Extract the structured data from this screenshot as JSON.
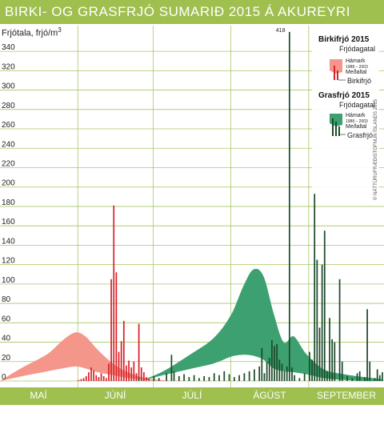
{
  "title": "BIRKI- OG GRASFRJÓ SUMARIÐ 2015 Á AKUREYRI",
  "copyright": "© NÁTTÚRUFRÆÐISTOFNUN ÍSLANDS 2015",
  "colors": {
    "header": "#9fbf4f",
    "birch_band": "#f4968a",
    "birch_bar": "#d9222a",
    "grass_band": "#3da070",
    "grass_bar": "#1c4a2a",
    "grid": "#a7c764"
  },
  "chart_data": {
    "type": "bar",
    "ylabel": "Frjótala, frjó/m",
    "ylabel_sup": "3",
    "ylim": [
      0,
      350
    ],
    "yticks": [
      0,
      20,
      40,
      60,
      80,
      100,
      120,
      140,
      160,
      180,
      200,
      220,
      240,
      260,
      280,
      300,
      320,
      340
    ],
    "months": [
      "MAÍ",
      "JÚNÍ",
      "JÚLÍ",
      "ÁGÚST",
      "SEPTEMBER"
    ],
    "x_range": [
      "2015-05-01",
      "2015-09-30"
    ],
    "legend": {
      "birch": {
        "heading": "Birkifrjó 2015",
        "band_label": "Frjódagatal",
        "max_label": "Hámark",
        "period_label": "1988 – 2003",
        "mean_label": "Meðaltal",
        "bar_label": "Birkifrjó"
      },
      "grass": {
        "heading": "Grasfrjó 2015",
        "band_label": "Frjódagatal",
        "max_label": "Hámark",
        "period_label": "1988 – 2003",
        "mean_label": "Meðaltal",
        "bar_label": "Grasfrjó"
      }
    },
    "annotations": [
      {
        "x": "2015-08-24",
        "text": "418"
      }
    ],
    "birch_calendar": [
      {
        "date": "2015-05-01",
        "min": 0,
        "max": 0
      },
      {
        "date": "2015-05-10",
        "min": 5,
        "max": 14
      },
      {
        "date": "2015-05-20",
        "min": 10,
        "max": 28
      },
      {
        "date": "2015-05-26",
        "min": 13,
        "max": 42
      },
      {
        "date": "2015-05-31",
        "min": 15,
        "max": 50
      },
      {
        "date": "2015-06-04",
        "min": 13,
        "max": 46
      },
      {
        "date": "2015-06-09",
        "min": 9,
        "max": 32
      },
      {
        "date": "2015-06-15",
        "min": 6,
        "max": 18
      },
      {
        "date": "2015-06-21",
        "min": 3,
        "max": 9
      },
      {
        "date": "2015-06-28",
        "min": 1,
        "max": 3
      },
      {
        "date": "2015-07-04",
        "min": 0,
        "max": 1
      },
      {
        "date": "2015-07-08",
        "min": 0,
        "max": 0
      }
    ],
    "grass_calendar": [
      {
        "date": "2015-06-26",
        "min": 0,
        "max": 0
      },
      {
        "date": "2015-07-05",
        "min": 6,
        "max": 10
      },
      {
        "date": "2015-07-15",
        "min": 12,
        "max": 26
      },
      {
        "date": "2015-07-25",
        "min": 18,
        "max": 44
      },
      {
        "date": "2015-08-01",
        "min": 25,
        "max": 68
      },
      {
        "date": "2015-08-06",
        "min": 27,
        "max": 98
      },
      {
        "date": "2015-08-10",
        "min": 26,
        "max": 115
      },
      {
        "date": "2015-08-14",
        "min": 22,
        "max": 108
      },
      {
        "date": "2015-08-18",
        "min": 13,
        "max": 70
      },
      {
        "date": "2015-08-22",
        "min": 10,
        "max": 40
      },
      {
        "date": "2015-08-26",
        "min": 9,
        "max": 46
      },
      {
        "date": "2015-08-31",
        "min": 7,
        "max": 28
      },
      {
        "date": "2015-09-07",
        "min": 3,
        "max": 12
      },
      {
        "date": "2015-09-15",
        "min": 1,
        "max": 7
      },
      {
        "date": "2015-09-23",
        "min": 0,
        "max": 4
      },
      {
        "date": "2015-09-30",
        "min": 0,
        "max": 2
      }
    ],
    "birch_daily": [
      {
        "date": "2015-06-01",
        "value": 1
      },
      {
        "date": "2015-06-02",
        "value": 2
      },
      {
        "date": "2015-06-03",
        "value": 3
      },
      {
        "date": "2015-06-04",
        "value": 5
      },
      {
        "date": "2015-06-05",
        "value": 9
      },
      {
        "date": "2015-06-06",
        "value": 14
      },
      {
        "date": "2015-06-07",
        "value": 11
      },
      {
        "date": "2015-06-08",
        "value": 6
      },
      {
        "date": "2015-06-09",
        "value": 4
      },
      {
        "date": "2015-06-10",
        "value": 8
      },
      {
        "date": "2015-06-11",
        "value": 5
      },
      {
        "date": "2015-06-12",
        "value": 3
      },
      {
        "date": "2015-06-13",
        "value": 18
      },
      {
        "date": "2015-06-14",
        "value": 105
      },
      {
        "date": "2015-06-15",
        "value": 181
      },
      {
        "date": "2015-06-16",
        "value": 112
      },
      {
        "date": "2015-06-17",
        "value": 30
      },
      {
        "date": "2015-06-18",
        "value": 41
      },
      {
        "date": "2015-06-19",
        "value": 62
      },
      {
        "date": "2015-06-20",
        "value": 16
      },
      {
        "date": "2015-06-21",
        "value": 21
      },
      {
        "date": "2015-06-22",
        "value": 14
      },
      {
        "date": "2015-06-23",
        "value": 20
      },
      {
        "date": "2015-06-24",
        "value": 8
      },
      {
        "date": "2015-06-25",
        "value": 59
      },
      {
        "date": "2015-06-26",
        "value": 14
      },
      {
        "date": "2015-06-27",
        "value": 9
      },
      {
        "date": "2015-06-28",
        "value": 4
      },
      {
        "date": "2015-06-29",
        "value": 2
      }
    ],
    "grass_daily": [
      {
        "date": "2015-06-25",
        "value": 3
      },
      {
        "date": "2015-07-01",
        "value": 5
      },
      {
        "date": "2015-07-03",
        "value": 3
      },
      {
        "date": "2015-07-06",
        "value": 8
      },
      {
        "date": "2015-07-08",
        "value": 27
      },
      {
        "date": "2015-07-09",
        "value": 10
      },
      {
        "date": "2015-07-11",
        "value": 5
      },
      {
        "date": "2015-07-13",
        "value": 7
      },
      {
        "date": "2015-07-15",
        "value": 4
      },
      {
        "date": "2015-07-17",
        "value": 6
      },
      {
        "date": "2015-07-19",
        "value": 3
      },
      {
        "date": "2015-07-21",
        "value": 5
      },
      {
        "date": "2015-07-23",
        "value": 4
      },
      {
        "date": "2015-07-25",
        "value": 8
      },
      {
        "date": "2015-07-27",
        "value": 6
      },
      {
        "date": "2015-07-29",
        "value": 10
      },
      {
        "date": "2015-07-31",
        "value": 7
      },
      {
        "date": "2015-08-02",
        "value": 4
      },
      {
        "date": "2015-08-04",
        "value": 6
      },
      {
        "date": "2015-08-06",
        "value": 8
      },
      {
        "date": "2015-08-08",
        "value": 10
      },
      {
        "date": "2015-08-10",
        "value": 12
      },
      {
        "date": "2015-08-12",
        "value": 15
      },
      {
        "date": "2015-08-13",
        "value": 34
      },
      {
        "date": "2015-08-14",
        "value": 8
      },
      {
        "date": "2015-08-15",
        "value": 20
      },
      {
        "date": "2015-08-16",
        "value": 24
      },
      {
        "date": "2015-08-17",
        "value": 42
      },
      {
        "date": "2015-08-18",
        "value": 36
      },
      {
        "date": "2015-08-19",
        "value": 38
      },
      {
        "date": "2015-08-20",
        "value": 22
      },
      {
        "date": "2015-08-21",
        "value": 18
      },
      {
        "date": "2015-08-22",
        "value": 10
      },
      {
        "date": "2015-08-23",
        "value": 15
      },
      {
        "date": "2015-08-24",
        "value": 418
      },
      {
        "date": "2015-08-25",
        "value": 14
      },
      {
        "date": "2015-08-26",
        "value": 6
      },
      {
        "date": "2015-08-28",
        "value": 3
      },
      {
        "date": "2015-08-30",
        "value": 8
      },
      {
        "date": "2015-09-01",
        "value": 30
      },
      {
        "date": "2015-09-02",
        "value": 22
      },
      {
        "date": "2015-09-03",
        "value": 193
      },
      {
        "date": "2015-09-04",
        "value": 125
      },
      {
        "date": "2015-09-05",
        "value": 55
      },
      {
        "date": "2015-09-06",
        "value": 120
      },
      {
        "date": "2015-09-07",
        "value": 155
      },
      {
        "date": "2015-09-08",
        "value": 10
      },
      {
        "date": "2015-09-09",
        "value": 65
      },
      {
        "date": "2015-09-10",
        "value": 43
      },
      {
        "date": "2015-09-11",
        "value": 40
      },
      {
        "date": "2015-09-13",
        "value": 105
      },
      {
        "date": "2015-09-14",
        "value": 20
      },
      {
        "date": "2015-09-16",
        "value": 5
      },
      {
        "date": "2015-09-18",
        "value": 3
      },
      {
        "date": "2015-09-20",
        "value": 8
      },
      {
        "date": "2015-09-21",
        "value": 10
      },
      {
        "date": "2015-09-23",
        "value": 4
      },
      {
        "date": "2015-09-24",
        "value": 74
      },
      {
        "date": "2015-09-25",
        "value": 20
      },
      {
        "date": "2015-09-27",
        "value": 3
      },
      {
        "date": "2015-09-28",
        "value": 12
      },
      {
        "date": "2015-09-29",
        "value": 6
      },
      {
        "date": "2015-09-30",
        "value": 9
      }
    ]
  }
}
